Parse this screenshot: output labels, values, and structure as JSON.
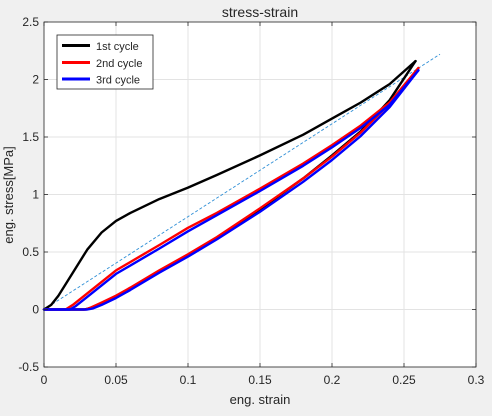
{
  "chart_data": {
    "type": "line",
    "title": "stress-strain",
    "xlabel": "eng. strain",
    "ylabel": "eng. stress[MPa]",
    "xlim": [
      0,
      0.3
    ],
    "ylim": [
      -0.5,
      2.5
    ],
    "xticks": [
      0,
      0.05,
      0.1,
      0.15,
      0.2,
      0.25,
      0.3
    ],
    "xtick_labels": [
      "0",
      "0.05",
      "0.1",
      "0.15",
      "0.2",
      "0.25",
      "0.3"
    ],
    "yticks": [
      -0.5,
      0,
      0.5,
      1,
      1.5,
      2,
      2.5
    ],
    "ytick_labels": [
      "-0.5",
      "0",
      "0.5",
      "1",
      "1.5",
      "2",
      "2.5"
    ],
    "grid": true,
    "legend_position": "top-left",
    "series": [
      {
        "name": "1st cycle",
        "color": "#000000",
        "loading": {
          "x": [
            0,
            0.005,
            0.01,
            0.02,
            0.03,
            0.04,
            0.05,
            0.06,
            0.08,
            0.1,
            0.12,
            0.15,
            0.18,
            0.2,
            0.22,
            0.24,
            0.258
          ],
          "y": [
            0,
            0.04,
            0.12,
            0.32,
            0.52,
            0.67,
            0.77,
            0.84,
            0.96,
            1.06,
            1.17,
            1.34,
            1.52,
            1.66,
            1.8,
            1.96,
            2.16
          ]
        },
        "unloading": {
          "x": [
            0.258,
            0.24,
            0.22,
            0.2,
            0.18,
            0.15,
            0.12,
            0.1,
            0.08,
            0.06,
            0.05,
            0.04,
            0.033,
            0.028,
            0.025,
            0.02,
            0.015,
            0.01,
            0.005,
            0
          ],
          "y": [
            2.16,
            1.82,
            1.55,
            1.34,
            1.14,
            0.87,
            0.62,
            0.47,
            0.33,
            0.18,
            0.11,
            0.05,
            0.015,
            0.0,
            0.0,
            0.0,
            0.0,
            0.0,
            0.0,
            0.0
          ]
        }
      },
      {
        "name": "2nd cycle",
        "color": "#ff0000",
        "loading": {
          "x": [
            0,
            0.015,
            0.02,
            0.03,
            0.05,
            0.08,
            0.1,
            0.12,
            0.15,
            0.18,
            0.2,
            0.22,
            0.24,
            0.26
          ],
          "y": [
            0,
            0.0,
            0.04,
            0.14,
            0.34,
            0.56,
            0.71,
            0.84,
            1.05,
            1.27,
            1.43,
            1.6,
            1.8,
            2.1
          ]
        },
        "unloading": {
          "x": [
            0.26,
            0.24,
            0.22,
            0.2,
            0.18,
            0.15,
            0.12,
            0.1,
            0.08,
            0.06,
            0.05,
            0.04,
            0.033,
            0.029,
            0.025,
            0.02,
            0.015,
            0.01,
            0.005,
            0
          ],
          "y": [
            2.1,
            1.79,
            1.54,
            1.33,
            1.14,
            0.88,
            0.63,
            0.48,
            0.34,
            0.19,
            0.12,
            0.06,
            0.02,
            0.0,
            0.0,
            0.0,
            0.0,
            0.0,
            0.0,
            0.0
          ]
        }
      },
      {
        "name": "3rd cycle",
        "color": "#0000ff",
        "loading": {
          "x": [
            0,
            0.018,
            0.022,
            0.03,
            0.05,
            0.08,
            0.1,
            0.12,
            0.15,
            0.18,
            0.2,
            0.22,
            0.24,
            0.26
          ],
          "y": [
            0,
            0.0,
            0.03,
            0.11,
            0.31,
            0.53,
            0.68,
            0.82,
            1.03,
            1.25,
            1.41,
            1.58,
            1.78,
            2.08
          ]
        },
        "unloading": {
          "x": [
            0.26,
            0.24,
            0.22,
            0.2,
            0.18,
            0.15,
            0.12,
            0.1,
            0.08,
            0.06,
            0.05,
            0.04,
            0.034,
            0.03,
            0.026,
            0.02,
            0.015,
            0.01,
            0.005,
            0
          ],
          "y": [
            2.08,
            1.76,
            1.51,
            1.3,
            1.11,
            0.85,
            0.61,
            0.46,
            0.32,
            0.17,
            0.1,
            0.04,
            0.01,
            0.0,
            0.0,
            0.0,
            0.0,
            0.0,
            0.0,
            0.0
          ]
        }
      }
    ],
    "reference_line": {
      "color": "#2f8fd6",
      "style": "dashed",
      "x": [
        0,
        0.275
      ],
      "y": [
        0,
        2.22
      ]
    }
  }
}
